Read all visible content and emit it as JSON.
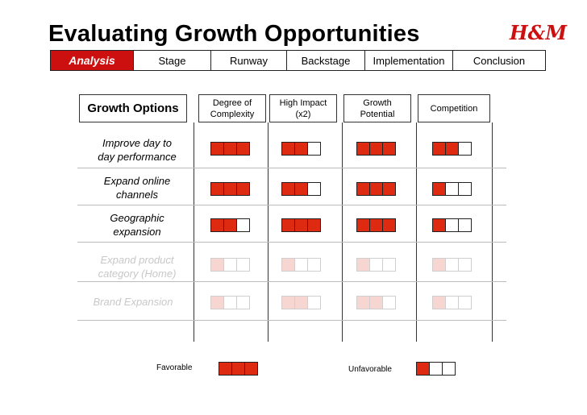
{
  "page": {
    "title": "Evaluating Growth Opportunities",
    "logo_text": "H&M",
    "brand_color": "#cc1010"
  },
  "tabs": [
    {
      "label": "Analysis",
      "active": true
    },
    {
      "label": "Stage",
      "active": false
    },
    {
      "label": "Runway",
      "active": false
    },
    {
      "label": "Backstage",
      "active": false
    },
    {
      "label": "Implementation",
      "active": false
    },
    {
      "label": "Conclusion",
      "active": false
    }
  ],
  "table": {
    "row_header": "Growth Options",
    "columns": [
      {
        "line1": "Degree of",
        "line2": "Complexity"
      },
      {
        "line1": "High Impact",
        "line2": "(x2)"
      },
      {
        "line1": "Growth",
        "line2": "Potential"
      },
      {
        "line1": "Competition",
        "line2": ""
      }
    ],
    "rows": [
      {
        "line1": "Improve day to",
        "line2": "day performance",
        "faded": false,
        "scores": [
          3,
          2,
          3,
          2
        ]
      },
      {
        "line1": "Expand online",
        "line2": "channels",
        "faded": false,
        "scores": [
          3,
          2,
          3,
          1
        ]
      },
      {
        "line1": "Geographic",
        "line2": "expansion",
        "faded": false,
        "scores": [
          2,
          3,
          3,
          1
        ]
      },
      {
        "line1": "Expand product",
        "line2": "category (Home)",
        "faded": true,
        "scores": [
          1,
          1,
          1,
          1
        ]
      },
      {
        "line1": "Brand Expansion",
        "line2": "",
        "faded": true,
        "scores": [
          1,
          2,
          2,
          1
        ]
      }
    ],
    "scale_max": 3
  },
  "legend": {
    "favorable_label": "Favorable",
    "favorable_score": 3,
    "unfavorable_label": "Unfavorable",
    "unfavorable_score": 1
  }
}
